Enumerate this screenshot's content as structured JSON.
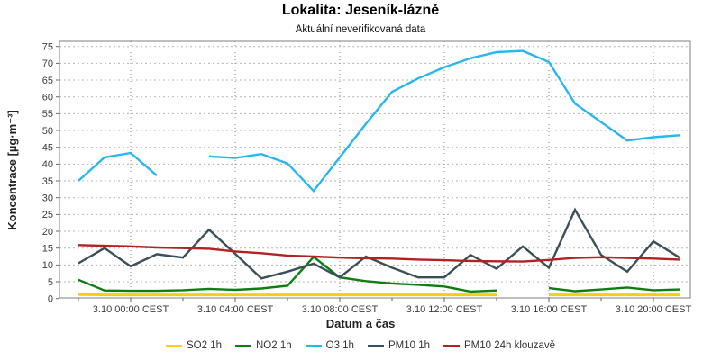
{
  "header": {
    "title": "Lokalita: Jeseník-lázně",
    "subtitle": "Aktuální neverifikovaná data"
  },
  "chart_data": {
    "type": "line",
    "title": "Lokalita: Jeseník-lázně",
    "subtitle": "Aktuální neverifikovaná data",
    "xlabel": "Datum a čas",
    "ylabel": "Koncentrace [µg·m⁻³]",
    "ylim": [
      0,
      76.5
    ],
    "yticks": [
      0,
      5,
      10,
      15,
      20,
      25,
      30,
      35,
      40,
      45,
      50,
      55,
      60,
      65,
      70,
      75
    ],
    "grid": "dashed",
    "legend_position": "bottom",
    "x_times": [
      "2.10 22:00",
      "2.10 23:00",
      "3.10 00:00",
      "3.10 01:00",
      "3.10 02:00",
      "3.10 03:00",
      "3.10 04:00",
      "3.10 05:00",
      "3.10 06:00",
      "3.10 07:00",
      "3.10 08:00",
      "3.10 09:00",
      "3.10 10:00",
      "3.10 11:00",
      "3.10 12:00",
      "3.10 13:00",
      "3.10 14:00",
      "3.10 15:00",
      "3.10 16:00",
      "3.10 17:00",
      "3.10 18:00",
      "3.10 19:00",
      "3.10 20:00",
      "3.10 21:00"
    ],
    "xticks": [
      {
        "at_index": 2,
        "label": "3.10 00:00 CEST"
      },
      {
        "at_index": 6,
        "label": "3.10 04:00 CEST"
      },
      {
        "at_index": 10,
        "label": "3.10 08:00 CEST"
      },
      {
        "at_index": 14,
        "label": "3.10 12:00 CEST"
      },
      {
        "at_index": 18,
        "label": "3.10 16:00 CEST"
      },
      {
        "at_index": 22,
        "label": "3.10 20:00 CEST"
      }
    ],
    "series": [
      {
        "id": "so2-1h",
        "name": "SO2 1h",
        "color": "#f5cf11",
        "values": [
          1.2,
          1.1,
          1.1,
          1.1,
          1.1,
          1.1,
          1.1,
          1.1,
          1.1,
          1.1,
          1.1,
          1.1,
          1.1,
          1.1,
          1.1,
          1.1,
          1.1,
          null,
          1.1,
          1.1,
          1.1,
          1.1,
          1.1,
          1.1
        ]
      },
      {
        "id": "no2-1h",
        "name": "NO2 1h",
        "color": "#0e7e12",
        "values": [
          5.6,
          2.4,
          2.3,
          2.3,
          2.5,
          2.9,
          2.6,
          3.0,
          3.8,
          12.4,
          6.3,
          5.2,
          4.5,
          4.1,
          3.6,
          2.1,
          2.4,
          null,
          3.1,
          2.2,
          2.7,
          3.3,
          2.5,
          2.7
        ]
      },
      {
        "id": "o3-1h",
        "name": "O3 1h",
        "color": "#29b6f0",
        "values": [
          35.0,
          42.0,
          43.3,
          36.6,
          null,
          42.3,
          41.8,
          43.0,
          40.2,
          32.0,
          42.0,
          52.0,
          61.5,
          65.5,
          68.8,
          71.5,
          73.3,
          73.7,
          70.4,
          58.0,
          52.5,
          47.0,
          48.0,
          48.6
        ]
      },
      {
        "id": "pm10-1h",
        "name": "PM10 1h",
        "color": "#3a5059",
        "values": [
          10.5,
          15.0,
          9.6,
          13.2,
          12.2,
          20.5,
          13.3,
          6.0,
          8.0,
          10.4,
          6.3,
          12.5,
          9.2,
          6.3,
          6.3,
          13.0,
          8.9,
          15.5,
          9.2,
          26.4,
          13.0,
          8.0,
          17.0,
          12.2
        ]
      },
      {
        "id": "pm10-24h",
        "name": "PM10 24h klouzavě",
        "color": "#b22222",
        "values": [
          15.9,
          15.7,
          15.5,
          15.2,
          15.0,
          14.8,
          14.0,
          13.5,
          12.8,
          12.5,
          12.2,
          12.0,
          11.9,
          11.6,
          11.4,
          11.2,
          11.1,
          11.0,
          11.5,
          12.1,
          12.3,
          12.1,
          11.9,
          11.6
        ]
      }
    ]
  }
}
